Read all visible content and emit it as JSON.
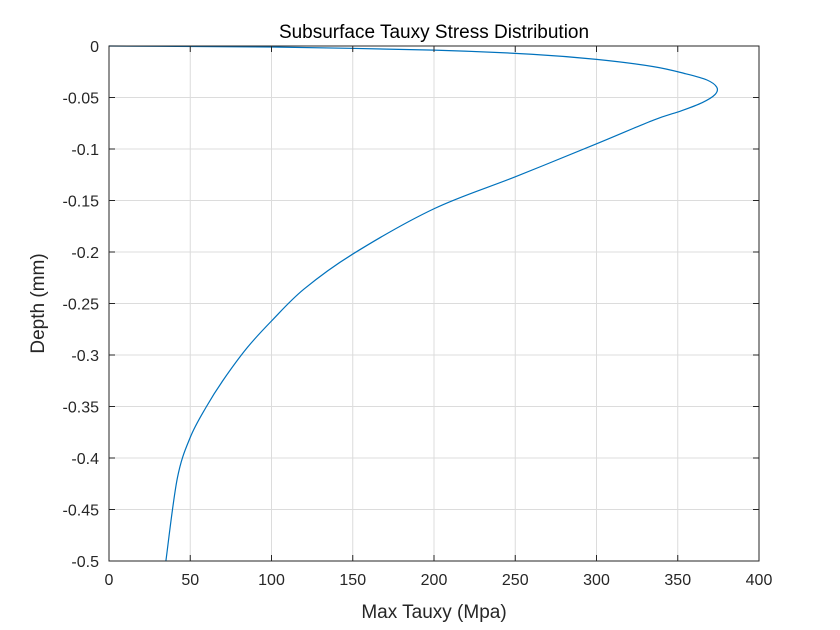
{
  "chart_data": {
    "type": "line",
    "title": "Subsurface Tauxy Stress Distribution",
    "xlabel": "Max Tauxy (Mpa)",
    "ylabel": "Depth (mm)",
    "xlim": [
      0,
      400
    ],
    "ylim": [
      -0.5,
      0
    ],
    "xticks": [
      0,
      50,
      100,
      150,
      200,
      250,
      300,
      350,
      400
    ],
    "yticks": [
      0,
      -0.05,
      -0.1,
      -0.15,
      -0.2,
      -0.25,
      -0.3,
      -0.35,
      -0.4,
      -0.45,
      -0.5
    ],
    "xtick_labels": [
      "0",
      "50",
      "100",
      "150",
      "200",
      "250",
      "300",
      "350",
      "400"
    ],
    "ytick_labels": [
      "0",
      "-0.05",
      "-0.1",
      "-0.15",
      "-0.2",
      "-0.25",
      "-0.3",
      "-0.35",
      "-0.4",
      "-0.45",
      "-0.5"
    ],
    "grid": true,
    "line_color": "#0072BD",
    "series": [
      {
        "x": [
          0,
          30,
          100,
          200,
          260,
          300,
          335,
          355,
          368,
          374,
          373,
          365,
          352,
          335,
          300,
          250,
          200,
          150,
          120,
          100,
          85,
          70,
          60,
          50,
          42,
          35
        ],
        "y": [
          0,
          -0.0003,
          -0.001,
          -0.004,
          -0.008,
          -0.013,
          -0.02,
          -0.027,
          -0.033,
          -0.04,
          -0.047,
          -0.055,
          -0.063,
          -0.072,
          -0.095,
          -0.127,
          -0.158,
          -0.202,
          -0.236,
          -0.267,
          -0.293,
          -0.325,
          -0.35,
          -0.38,
          -0.42,
          -0.5
        ]
      }
    ]
  }
}
